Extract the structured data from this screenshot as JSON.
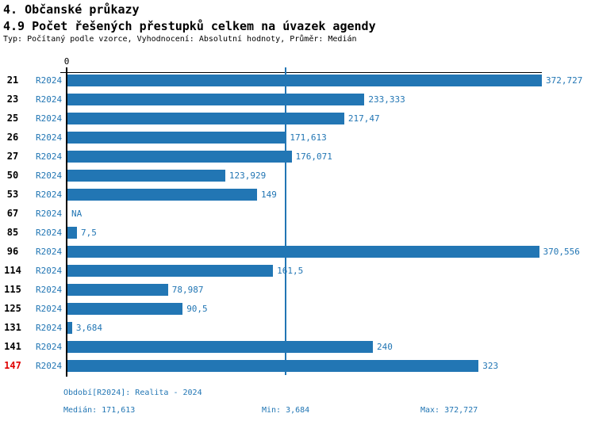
{
  "header": {
    "title": "4. Občanské průkazy",
    "subtitle": "4.9 Počet řešených přestupků celkem na úvazek agendy",
    "meta": "Typ: Počítaný podle vzorce, Vyhodnocení: Absolutní hodnoty, Průměr: Medián"
  },
  "chart_data": {
    "type": "bar",
    "orientation": "horizontal",
    "title": "4.9 Počet řešených přestupků celkem na úvazek agendy",
    "series_label": "R2024",
    "categories": [
      "21",
      "23",
      "25",
      "26",
      "27",
      "50",
      "53",
      "67",
      "85",
      "96",
      "114",
      "115",
      "125",
      "131",
      "141",
      "147"
    ],
    "values": [
      372.727,
      233.333,
      217.47,
      171.613,
      176.071,
      123.929,
      149,
      null,
      7.5,
      370.556,
      161.5,
      78.987,
      90.5,
      3.684,
      240,
      323
    ],
    "value_labels": [
      "372,727",
      "233,333",
      "217,47",
      "171,613",
      "176,071",
      "123,929",
      "149",
      "NA",
      "7,5",
      "370,556",
      "161,5",
      "78,987",
      "90,5",
      "3,684",
      "240",
      "323"
    ],
    "highlighted_category": "147",
    "xlim": [
      0,
      372.727
    ],
    "zero_tick_label": "0",
    "median_line_value": 171.613,
    "grid": false,
    "legend": false
  },
  "footer": {
    "period": "Období[R2024]: Realita - 2024",
    "median": "Medián: 171,613",
    "min": "Min: 3,684",
    "max": "Max: 372,727"
  },
  "colors": {
    "bar_blue": "#2276b4",
    "text_blue": "#2276b4",
    "highlight_red": "#e00000",
    "axis_black": "#000000"
  }
}
